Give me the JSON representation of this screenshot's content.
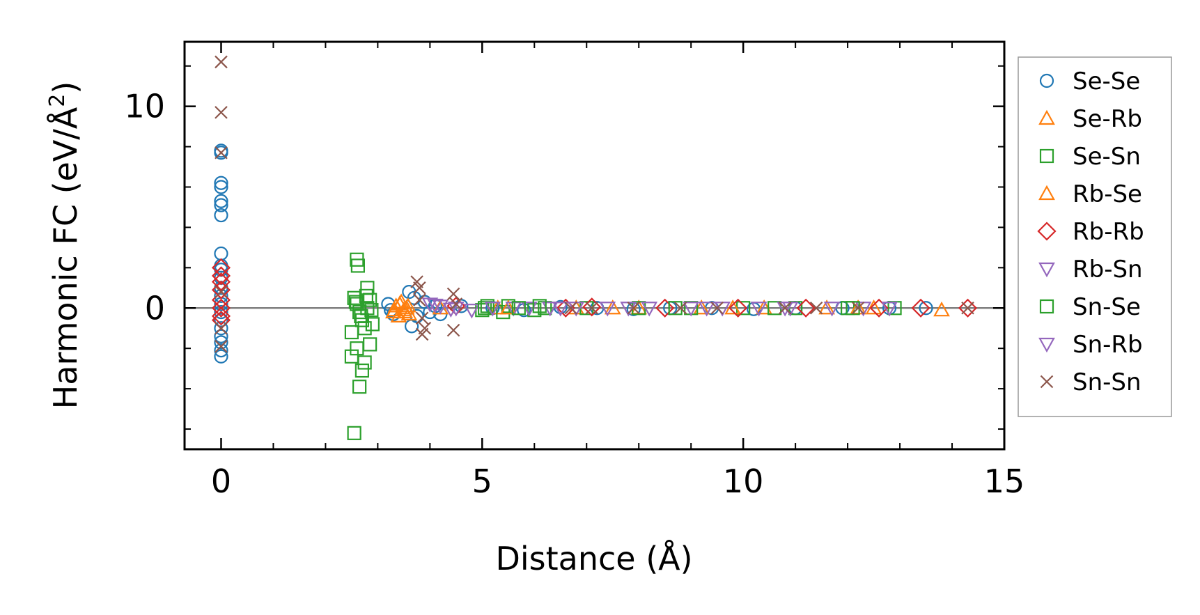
{
  "chart_data": {
    "type": "scatter",
    "title": "",
    "xlabel": "Distance (Å)",
    "ylabel": "Harmonic FC (eV/Å²)",
    "ylabel_main": "Harmonic FC (eV/Å",
    "ylabel_sup": "2",
    "ylabel_end": ")",
    "xlim": [
      -0.7,
      15.0
    ],
    "ylim": [
      -7.0,
      13.2
    ],
    "xticks": [
      0,
      5,
      10,
      15
    ],
    "xtick_labels": [
      "0",
      "5",
      "10",
      "15"
    ],
    "yticks": [
      0,
      10
    ],
    "ytick_labels": [
      "0",
      "10"
    ],
    "zero_line": 0,
    "grid": false,
    "legend_position": "right-outside",
    "series": [
      {
        "name": "Se-Se",
        "marker": "circle",
        "color": "#1f77b4",
        "points": [
          [
            0,
            7.8
          ],
          [
            0,
            7.7
          ],
          [
            0,
            6.2
          ],
          [
            0,
            6.0
          ],
          [
            0,
            5.3
          ],
          [
            0,
            5.1
          ],
          [
            0,
            4.6
          ],
          [
            0,
            2.7
          ],
          [
            0,
            2.1
          ],
          [
            0,
            1.9
          ],
          [
            0,
            1.5
          ],
          [
            0,
            1.0
          ],
          [
            0,
            0.6
          ],
          [
            0,
            0.2
          ],
          [
            0,
            -0.2
          ],
          [
            0,
            -0.6
          ],
          [
            0,
            -1.0
          ],
          [
            0,
            -1.4
          ],
          [
            0,
            -1.7
          ],
          [
            0,
            -2.1
          ],
          [
            0,
            -2.4
          ],
          [
            3.2,
            0.2
          ],
          [
            3.25,
            -0.1
          ],
          [
            3.3,
            -0.3
          ],
          [
            3.6,
            0.8
          ],
          [
            3.65,
            -0.9
          ],
          [
            3.7,
            0.5
          ],
          [
            3.75,
            -0.4
          ],
          [
            3.9,
            0.3
          ],
          [
            4.0,
            -0.2
          ],
          [
            4.1,
            0.1
          ],
          [
            4.2,
            -0.3
          ],
          [
            4.6,
            0.1
          ],
          [
            5.2,
            0.0
          ],
          [
            5.8,
            -0.1
          ],
          [
            6.5,
            0.05
          ],
          [
            7.2,
            0.0
          ],
          [
            7.9,
            -0.05
          ],
          [
            8.6,
            0.0
          ],
          [
            9.4,
            0.0
          ],
          [
            10.2,
            -0.05
          ],
          [
            11.0,
            0.0
          ],
          [
            11.9,
            0.0
          ],
          [
            12.8,
            0.0
          ],
          [
            13.5,
            0.0
          ]
        ]
      },
      {
        "name": "Se-Rb",
        "marker": "triangle-up",
        "color": "#ff7f0e",
        "points": [
          [
            3.3,
            -0.2
          ],
          [
            3.35,
            0.1
          ],
          [
            3.4,
            -0.4
          ],
          [
            3.45,
            0.3
          ],
          [
            3.5,
            -0.1
          ],
          [
            3.55,
            0.0
          ],
          [
            3.6,
            -0.3
          ],
          [
            4.2,
            0.0
          ],
          [
            5.3,
            0.0
          ],
          [
            6.8,
            0.0
          ],
          [
            8.0,
            0.0
          ],
          [
            9.2,
            0.0
          ],
          [
            10.4,
            0.0
          ],
          [
            11.6,
            0.0
          ],
          [
            12.5,
            0.0
          ],
          [
            13.8,
            -0.1
          ]
        ]
      },
      {
        "name": "Se-Sn",
        "marker": "square",
        "color": "#2ca02c",
        "points": [
          [
            2.55,
            -6.2
          ],
          [
            2.6,
            2.4
          ],
          [
            2.62,
            2.1
          ],
          [
            2.65,
            -3.9
          ],
          [
            2.7,
            -3.1
          ],
          [
            2.5,
            -2.4
          ],
          [
            2.75,
            -2.7
          ],
          [
            2.85,
            -1.8
          ],
          [
            2.8,
            1.0
          ],
          [
            2.55,
            0.5
          ],
          [
            2.6,
            0.2
          ],
          [
            2.65,
            -0.2
          ],
          [
            2.7,
            -0.6
          ],
          [
            2.75,
            -1.0
          ],
          [
            2.8,
            0.0
          ],
          [
            2.85,
            0.4
          ],
          [
            2.5,
            -1.2
          ],
          [
            2.9,
            -0.8
          ],
          [
            2.6,
            -2.0
          ],
          [
            5.0,
            -0.1
          ],
          [
            5.1,
            0.1
          ],
          [
            5.4,
            -0.2
          ],
          [
            5.5,
            0.1
          ],
          [
            6.0,
            -0.1
          ],
          [
            6.2,
            0.0
          ],
          [
            7.0,
            0.0
          ],
          [
            8.0,
            0.0
          ],
          [
            9.0,
            0.0
          ],
          [
            10.0,
            0.0
          ],
          [
            11.0,
            0.0
          ],
          [
            12.0,
            0.0
          ],
          [
            12.9,
            0.0
          ]
        ]
      },
      {
        "name": "Rb-Se",
        "marker": "triangle-up",
        "color": "#ff7f0e",
        "points": [
          [
            3.32,
            -0.1
          ],
          [
            3.42,
            0.2
          ],
          [
            3.52,
            -0.2
          ],
          [
            3.58,
            0.1
          ],
          [
            5.5,
            0.0
          ],
          [
            7.5,
            0.0
          ],
          [
            9.8,
            0.0
          ],
          [
            12.2,
            0.0
          ]
        ]
      },
      {
        "name": "Rb-Rb",
        "marker": "diamond",
        "color": "#d62728",
        "points": [
          [
            0,
            2.0
          ],
          [
            0,
            1.6
          ],
          [
            0,
            1.3
          ],
          [
            0,
            0.9
          ],
          [
            0,
            0.4
          ],
          [
            0,
            0.0
          ],
          [
            0,
            -0.4
          ],
          [
            0,
            -0.6
          ],
          [
            4.5,
            0.1
          ],
          [
            6.6,
            0.0
          ],
          [
            7.1,
            0.05
          ],
          [
            8.5,
            0.0
          ],
          [
            9.9,
            0.0
          ],
          [
            11.2,
            0.0
          ],
          [
            12.6,
            0.0
          ],
          [
            13.4,
            0.0
          ],
          [
            14.3,
            0.0
          ]
        ]
      },
      {
        "name": "Rb-Sn",
        "marker": "triangle-down",
        "color": "#9467bd",
        "points": [
          [
            4.0,
            0.2
          ],
          [
            4.2,
            0.1
          ],
          [
            4.5,
            0.0
          ],
          [
            4.8,
            -0.1
          ],
          [
            5.6,
            0.0
          ],
          [
            5.9,
            0.0
          ],
          [
            6.3,
            0.0
          ],
          [
            6.8,
            0.0
          ],
          [
            7.4,
            0.0
          ],
          [
            8.2,
            0.0
          ],
          [
            9.0,
            0.0
          ],
          [
            9.6,
            0.0
          ],
          [
            10.3,
            0.0
          ],
          [
            10.9,
            0.0
          ],
          [
            11.7,
            0.0
          ],
          [
            12.3,
            0.0
          ]
        ]
      },
      {
        "name": "Sn-Se",
        "marker": "square",
        "color": "#2ca02c",
        "points": [
          [
            2.58,
            0.3
          ],
          [
            2.68,
            -0.4
          ],
          [
            2.78,
            0.6
          ],
          [
            2.88,
            -0.1
          ],
          [
            5.05,
            0.0
          ],
          [
            5.7,
            0.0
          ],
          [
            6.1,
            0.1
          ],
          [
            8.7,
            0.0
          ],
          [
            10.6,
            0.0
          ],
          [
            12.1,
            0.0
          ]
        ]
      },
      {
        "name": "Sn-Rb",
        "marker": "triangle-down",
        "color": "#9467bd",
        "points": [
          [
            4.1,
            0.15
          ],
          [
            4.4,
            -0.05
          ],
          [
            5.2,
            0.0
          ],
          [
            6.5,
            0.0
          ],
          [
            7.8,
            0.0
          ],
          [
            9.3,
            0.0
          ],
          [
            10.8,
            0.0
          ],
          [
            12.8,
            0.0
          ]
        ]
      },
      {
        "name": "Sn-Sn",
        "marker": "x",
        "color": "#8c564b",
        "points": [
          [
            0,
            12.2
          ],
          [
            0,
            9.7
          ],
          [
            0,
            7.7
          ],
          [
            0,
            0.8
          ],
          [
            0,
            -1.0
          ],
          [
            0,
            -1.9
          ],
          [
            3.75,
            1.3
          ],
          [
            3.8,
            1.0
          ],
          [
            3.85,
            -1.3
          ],
          [
            3.9,
            -1.0
          ],
          [
            3.8,
            0.4
          ],
          [
            3.85,
            -0.5
          ],
          [
            4.45,
            0.7
          ],
          [
            4.45,
            -1.1
          ],
          [
            4.5,
            0.2
          ],
          [
            6.7,
            0.0
          ],
          [
            7.1,
            0.0
          ],
          [
            7.9,
            0.0
          ],
          [
            8.8,
            0.0
          ],
          [
            9.5,
            0.0
          ],
          [
            10.8,
            0.0
          ],
          [
            11.4,
            0.0
          ],
          [
            12.2,
            0.0
          ],
          [
            14.3,
            0.0
          ]
        ]
      }
    ]
  }
}
